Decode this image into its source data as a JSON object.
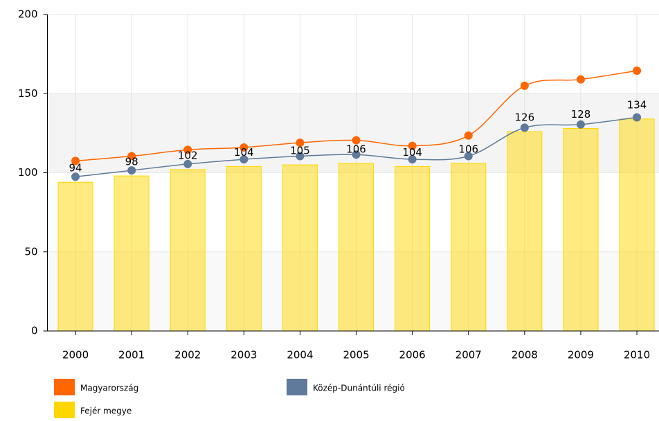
{
  "chart_data": {
    "type": "bar",
    "categories": [
      "2000",
      "2001",
      "2002",
      "2003",
      "2004",
      "2005",
      "2006",
      "2007",
      "2008",
      "2009",
      "2010"
    ],
    "series": [
      {
        "name": "Magyarország",
        "type": "line",
        "color": "#ff6600",
        "values": [
          107.5,
          110.5,
          114.5,
          116,
          119,
          120.5,
          117,
          123.5,
          155,
          159,
          164.5
        ]
      },
      {
        "name": "Közép-Dunántúli régió",
        "type": "line",
        "color": "#5f7a9a",
        "values": [
          97.5,
          101.5,
          105.5,
          108.5,
          110.5,
          111.5,
          108.5,
          110.5,
          128.5,
          130.5,
          135
        ]
      },
      {
        "name": "Fejér megye",
        "type": "bar",
        "color": "#ffd700",
        "values": [
          94,
          98,
          102,
          104,
          105,
          106,
          104,
          106,
          126,
          128,
          134
        ]
      }
    ],
    "ylim": [
      0,
      200
    ],
    "yticks": [
      0,
      50,
      100,
      150,
      200
    ],
    "grid": true
  }
}
